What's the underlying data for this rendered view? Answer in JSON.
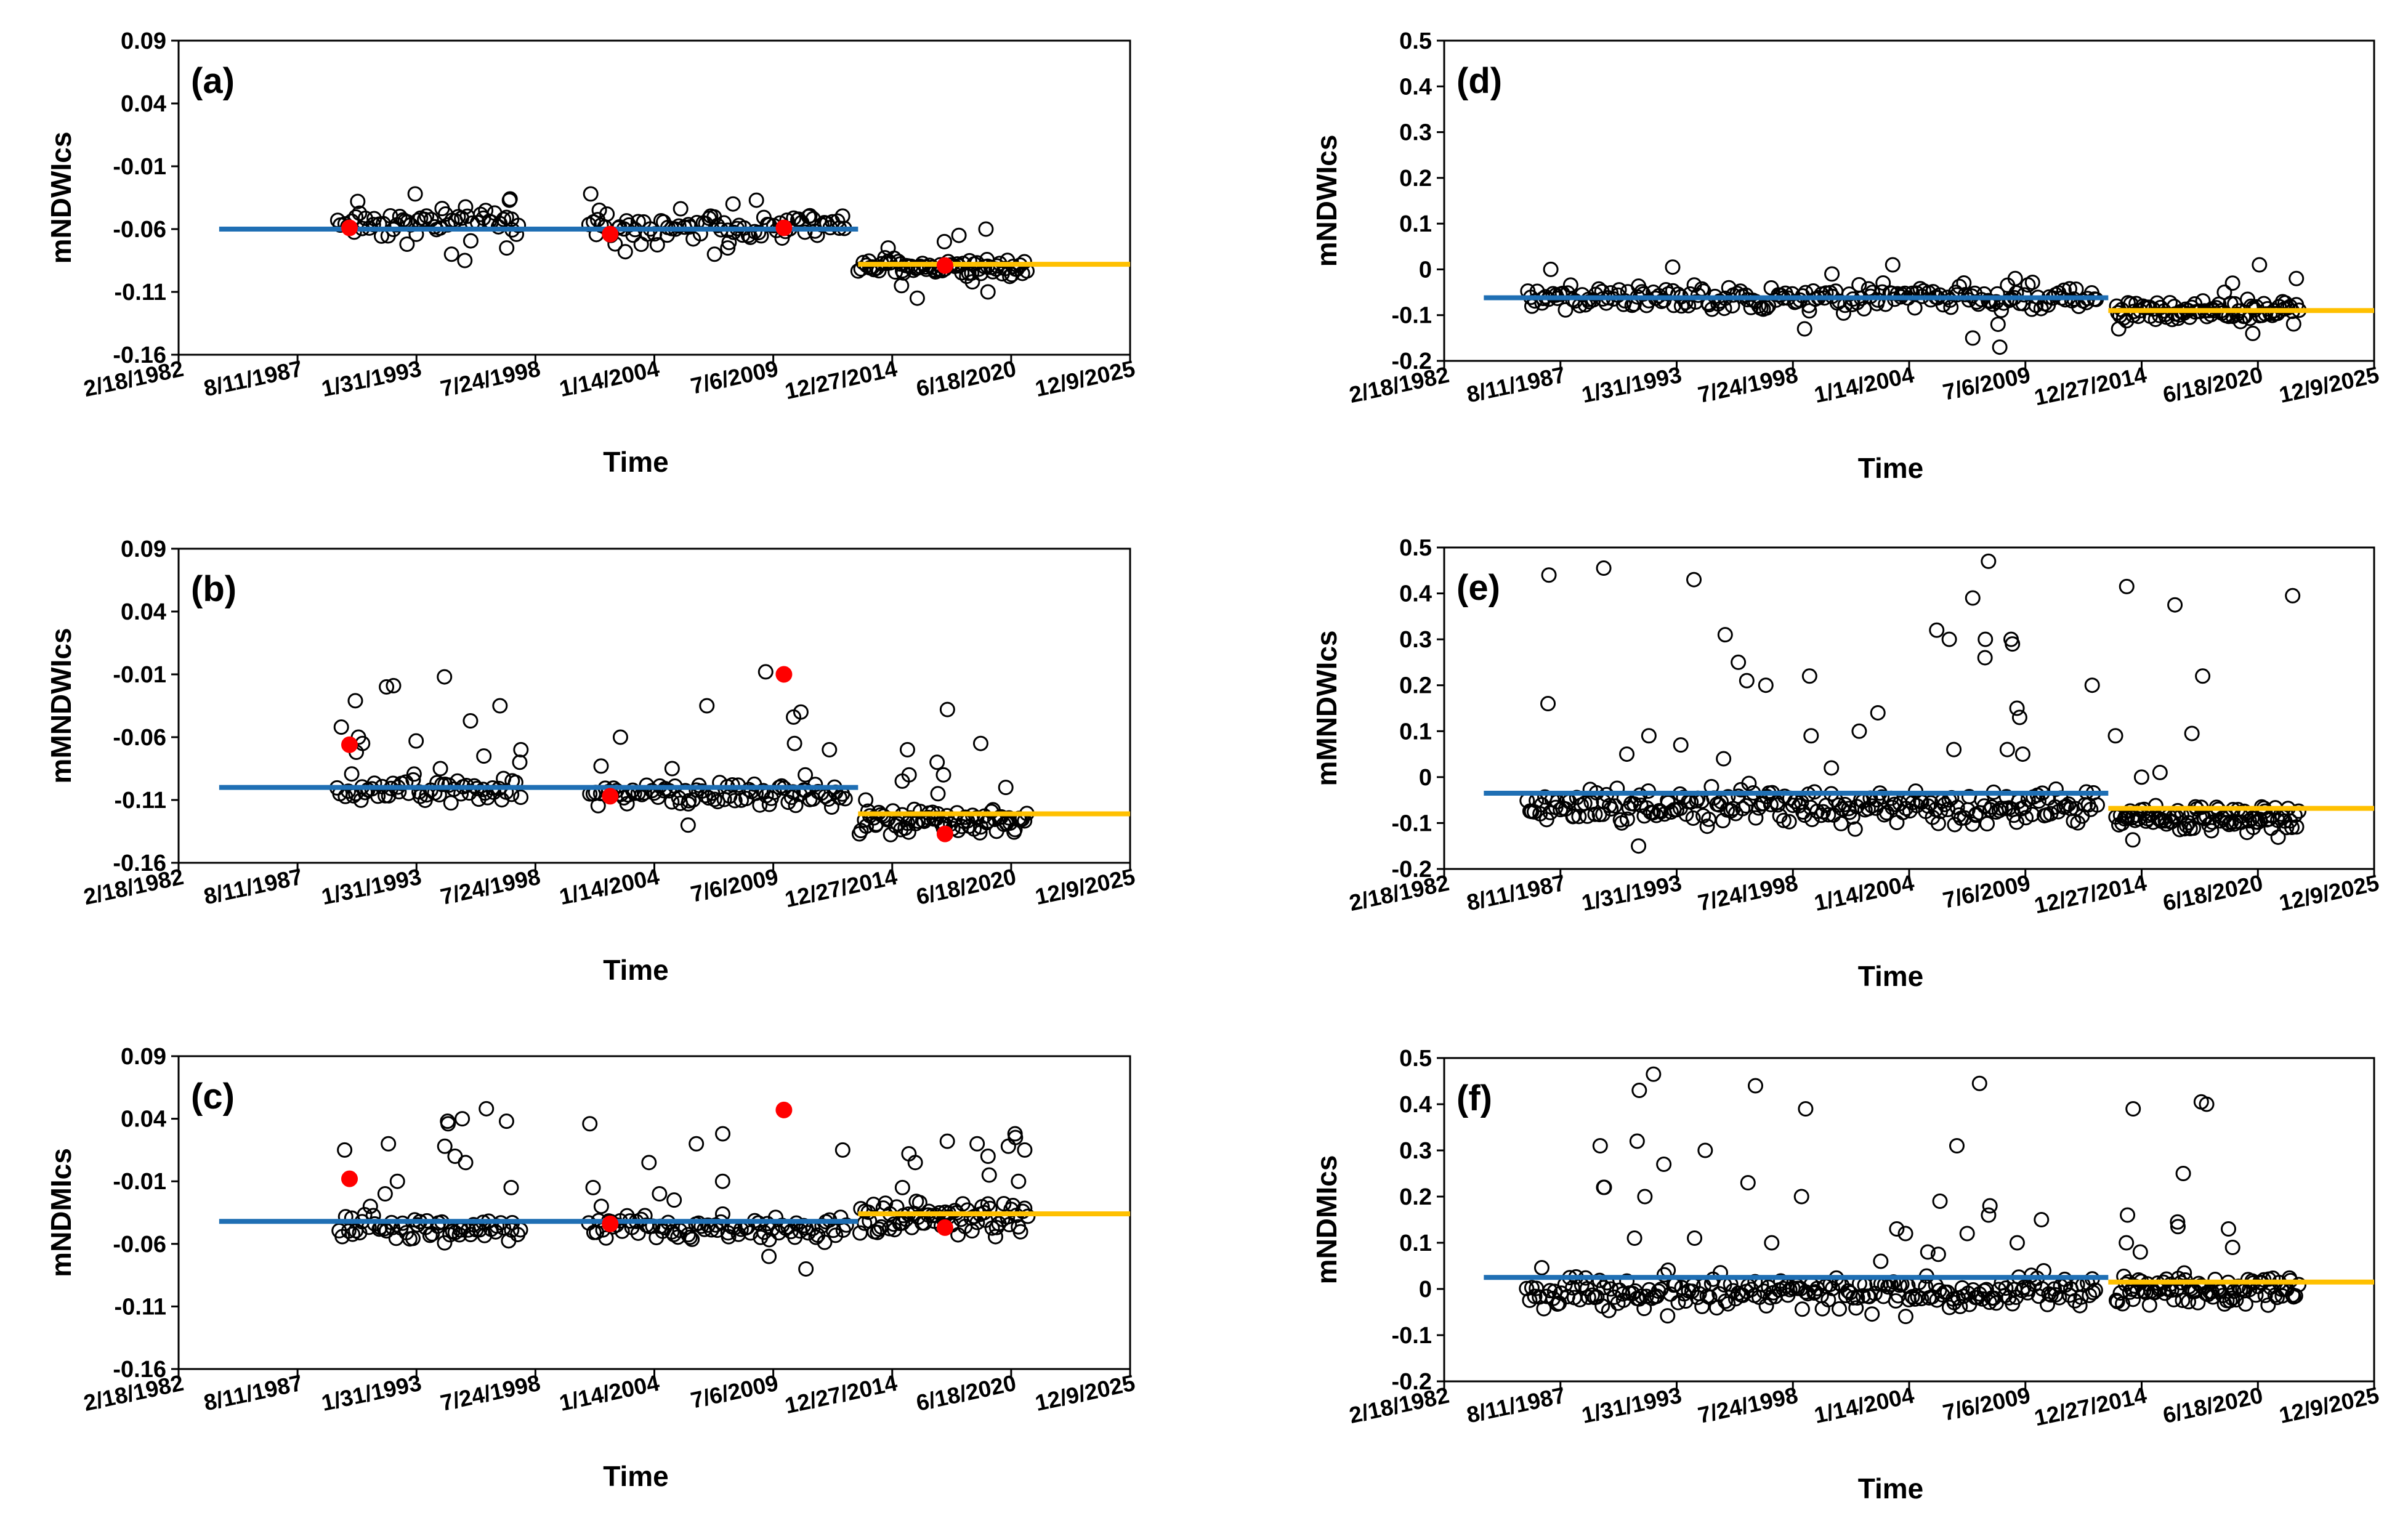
{
  "figure": {
    "x_axis_label": "Time"
  },
  "colors": {
    "baseline": "#1f6fb4",
    "recent": "#ffc000",
    "highlight": "#ff0000",
    "marker_edge": "#000000"
  },
  "chart_data": [
    {
      "id": "a",
      "panel_label": "(a)",
      "type": "scatter",
      "ylabel": "mNDWIcs",
      "ylim": [
        -0.16,
        0.09
      ],
      "yticks": [
        -0.16,
        -0.11,
        -0.06,
        -0.01,
        0.04,
        0.09
      ],
      "x_tick_labels": [
        "2/18/1982",
        "8/11/1987",
        "1/31/1993",
        "7/24/1998",
        "1/14/2004",
        "7/6/2009",
        "12/27/2014",
        "6/18/2020",
        "12/9/2025"
      ],
      "xlim": [
        "1982-02-18",
        "2025-12-09"
      ],
      "baseline": {
        "x_start": "1984-01-01",
        "x_end": "2013-06-01",
        "value": -0.06
      },
      "recent": {
        "x_start": "2013-06-01",
        "x_end": "2025-12-09",
        "value": -0.088
      },
      "highlights": [
        {
          "date": "1990-01-01",
          "value": -0.059
        },
        {
          "date": "2002-01-01",
          "value": -0.064
        },
        {
          "date": "2010-01-01",
          "value": -0.059
        },
        {
          "date": "2017-06-01",
          "value": -0.089
        }
      ],
      "clusters": [
        {
          "start": "1989-06-01",
          "end": "1997-12-01",
          "mean": -0.055,
          "spread": 0.009,
          "n": 60,
          "outliers": [
            -0.036,
            -0.037,
            -0.038,
            -0.08,
            -0.085,
            -0.075,
            -0.072,
            -0.032
          ]
        },
        {
          "start": "2001-01-01",
          "end": "2012-12-01",
          "mean": -0.058,
          "spread": 0.008,
          "n": 85,
          "outliers": [
            -0.04,
            -0.045,
            -0.08,
            -0.078,
            -0.075,
            -0.032,
            -0.037,
            -0.05
          ]
        },
        {
          "start": "2013-06-01",
          "end": "2021-04-01",
          "mean": -0.09,
          "spread": 0.006,
          "n": 75,
          "outliers": [
            -0.115,
            -0.105,
            -0.11,
            -0.06,
            -0.065,
            -0.07,
            -0.075,
            -0.102
          ]
        }
      ]
    },
    {
      "id": "b",
      "panel_label": "(b)",
      "type": "scatter",
      "ylabel": "mMNDWIcs",
      "ylim": [
        -0.16,
        0.09
      ],
      "yticks": [
        -0.16,
        -0.11,
        -0.06,
        -0.01,
        0.04,
        0.09
      ],
      "x_tick_labels": [
        "2/18/1982",
        "8/11/1987",
        "1/31/1993",
        "7/24/1998",
        "1/14/2004",
        "7/6/2009",
        "12/27/2014",
        "6/18/2020",
        "12/9/2025"
      ],
      "xlim": [
        "1982-02-18",
        "2025-12-09"
      ],
      "baseline": {
        "x_start": "1984-01-01",
        "x_end": "2013-06-01",
        "value": -0.1
      },
      "recent": {
        "x_start": "2013-06-01",
        "x_end": "2025-12-09",
        "value": -0.121
      },
      "highlights": [
        {
          "date": "1990-01-01",
          "value": -0.066
        },
        {
          "date": "2002-01-01",
          "value": -0.107
        },
        {
          "date": "2010-01-01",
          "value": -0.01
        },
        {
          "date": "2017-06-01",
          "value": -0.137
        }
      ],
      "clusters": [
        {
          "start": "1989-06-01",
          "end": "1997-12-01",
          "mean": -0.1,
          "spread": 0.009,
          "n": 60,
          "outliers": [
            -0.02,
            -0.019,
            -0.052,
            -0.047,
            -0.065,
            -0.07,
            -0.08,
            -0.085,
            -0.035,
            -0.012,
            -0.031,
            -0.063,
            -0.072,
            -0.06,
            -0.075
          ]
        },
        {
          "start": "2001-01-01",
          "end": "2012-12-01",
          "mean": -0.104,
          "spread": 0.008,
          "n": 85,
          "outliers": [
            -0.008,
            -0.044,
            -0.065,
            -0.083,
            -0.04,
            -0.035,
            -0.07,
            -0.13,
            -0.06,
            -0.085,
            -0.09
          ]
        },
        {
          "start": "2013-06-01",
          "end": "2021-04-01",
          "mean": -0.128,
          "spread": 0.007,
          "n": 75,
          "outliers": [
            -0.08,
            -0.09,
            -0.07,
            -0.1,
            -0.095,
            -0.038,
            -0.065,
            -0.105,
            -0.11,
            -0.09
          ]
        }
      ]
    },
    {
      "id": "c",
      "panel_label": "(c)",
      "type": "scatter",
      "ylabel": "mNDMIcs",
      "ylim": [
        -0.16,
        0.09
      ],
      "yticks": [
        -0.16,
        -0.11,
        -0.06,
        -0.01,
        0.04,
        0.09
      ],
      "x_tick_labels": [
        "2/18/1982",
        "8/11/1987",
        "1/31/1993",
        "7/24/1998",
        "1/14/2004",
        "7/6/2009",
        "12/27/2014",
        "6/18/2020",
        "12/9/2025"
      ],
      "xlim": [
        "1982-02-18",
        "2025-12-09"
      ],
      "baseline": {
        "x_start": "1984-01-01",
        "x_end": "2013-06-01",
        "value": -0.042
      },
      "recent": {
        "x_start": "2013-06-01",
        "x_end": "2025-12-09",
        "value": -0.036
      },
      "highlights": [
        {
          "date": "1990-01-01",
          "value": -0.008
        },
        {
          "date": "2002-01-01",
          "value": -0.044
        },
        {
          "date": "2010-01-01",
          "value": 0.047
        },
        {
          "date": "2017-06-01",
          "value": -0.047
        }
      ],
      "clusters": [
        {
          "start": "1989-06-01",
          "end": "1997-12-01",
          "mean": -0.047,
          "spread": 0.008,
          "n": 60,
          "outliers": [
            0.038,
            0.04,
            0.038,
            0.048,
            0.036,
            0.015,
            0.018,
            0.005,
            -0.01,
            -0.02,
            0.02,
            -0.03,
            -0.015,
            0.01
          ]
        },
        {
          "start": "2001-01-01",
          "end": "2012-12-01",
          "mean": -0.048,
          "spread": 0.008,
          "n": 85,
          "outliers": [
            0.036,
            0.028,
            0.015,
            0.02,
            -0.025,
            -0.02,
            -0.01,
            0.005,
            -0.08,
            -0.07,
            -0.03,
            -0.015
          ]
        },
        {
          "start": "2013-06-01",
          "end": "2021-04-01",
          "mean": -0.04,
          "spread": 0.01,
          "n": 75,
          "outliers": [
            0.028,
            0.025,
            0.01,
            0.02,
            0.015,
            0.005,
            -0.005,
            0.022,
            0.018,
            -0.01,
            -0.015,
            0.012
          ]
        }
      ]
    },
    {
      "id": "d",
      "panel_label": "(d)",
      "type": "scatter",
      "ylabel": "mNDWIcs",
      "ylim": [
        -0.2,
        0.5
      ],
      "yticks": [
        -0.2,
        -0.1,
        0,
        0.1,
        0.2,
        0.3,
        0.4,
        0.5
      ],
      "x_tick_labels": [
        "2/18/1982",
        "8/11/1987",
        "1/31/1993",
        "7/24/1998",
        "1/14/2004",
        "7/6/2009",
        "12/27/2014",
        "6/18/2020",
        "12/9/2025"
      ],
      "xlim": [
        "1982-02-18",
        "2025-12-09"
      ],
      "baseline": {
        "x_start": "1984-01-01",
        "x_end": "2013-06-01",
        "value": -0.062
      },
      "recent": {
        "x_start": "2013-06-01",
        "x_end": "2025-12-09",
        "value": -0.09
      },
      "highlights": [],
      "clusters": [
        {
          "start": "1986-01-01",
          "end": "2012-12-01",
          "mean": -0.062,
          "spread": 0.02,
          "n": 210,
          "outliers": [
            0.01,
            0.005,
            -0.01,
            0.0,
            -0.15,
            -0.13,
            -0.17,
            -0.12,
            -0.02
          ]
        },
        {
          "start": "2013-10-01",
          "end": "2022-06-01",
          "mean": -0.09,
          "spread": 0.018,
          "n": 90,
          "outliers": [
            0.01,
            -0.03,
            -0.05,
            -0.13,
            -0.14,
            -0.02
          ]
        }
      ]
    },
    {
      "id": "e",
      "panel_label": "(e)",
      "type": "scatter",
      "ylabel": "mMNDWIcs",
      "ylim": [
        -0.2,
        0.5
      ],
      "yticks": [
        -0.2,
        -0.1,
        0,
        0.1,
        0.2,
        0.3,
        0.4,
        0.5
      ],
      "x_tick_labels": [
        "2/18/1982",
        "8/11/1987",
        "1/31/1993",
        "7/24/1998",
        "1/14/2004",
        "7/6/2009",
        "12/27/2014",
        "6/18/2020",
        "12/9/2025"
      ],
      "xlim": [
        "1982-02-18",
        "2025-12-09"
      ],
      "baseline": {
        "x_start": "1984-01-01",
        "x_end": "2013-06-01",
        "value": -0.035
      },
      "recent": {
        "x_start": "2013-06-01",
        "x_end": "2025-12-09",
        "value": -0.068
      },
      "highlights": [],
      "clusters": [
        {
          "start": "1986-01-01",
          "end": "2012-12-01",
          "mean": -0.065,
          "spread": 0.03,
          "n": 230,
          "outliers": [
            0.44,
            0.455,
            0.47,
            0.43,
            0.39,
            0.3,
            0.29,
            0.26,
            0.32,
            0.25,
            0.2,
            0.2,
            0.15,
            0.14,
            0.1,
            0.09,
            0.07,
            0.05,
            0.3,
            0.3,
            0.22,
            0.21,
            0.16,
            0.13,
            0.09,
            0.06,
            0.04,
            0.02,
            0.05,
            0.31,
            0.06,
            -0.15
          ]
        },
        {
          "start": "2013-10-01",
          "end": "2022-06-01",
          "mean": -0.09,
          "spread": 0.025,
          "n": 95,
          "outliers": [
            0.415,
            0.395,
            0.22,
            0.095,
            0.09,
            0.375,
            0.0,
            0.01
          ]
        }
      ]
    },
    {
      "id": "f",
      "panel_label": "(f)",
      "type": "scatter",
      "ylabel": "mNDMIcs",
      "ylim": [
        -0.2,
        0.5
      ],
      "yticks": [
        -0.2,
        -0.1,
        0,
        0.1,
        0.2,
        0.3,
        0.4,
        0.5
      ],
      "x_tick_labels": [
        "2/18/1982",
        "8/11/1987",
        "1/31/1993",
        "7/24/1998",
        "1/14/2004",
        "7/6/2009",
        "12/27/2014",
        "6/18/2020",
        "12/9/2025"
      ],
      "xlim": [
        "1982-02-18",
        "2025-12-09"
      ],
      "baseline": {
        "x_start": "1984-01-01",
        "x_end": "2013-06-01",
        "value": 0.025
      },
      "recent": {
        "x_start": "2013-06-01",
        "x_end": "2025-12-09",
        "value": 0.015
      },
      "highlights": [],
      "clusters": [
        {
          "start": "1986-01-01",
          "end": "2012-12-01",
          "mean": -0.005,
          "spread": 0.03,
          "n": 230,
          "outliers": [
            0.44,
            0.445,
            0.465,
            0.43,
            0.39,
            0.31,
            0.3,
            0.27,
            0.32,
            0.2,
            0.22,
            0.18,
            0.15,
            0.12,
            0.1,
            0.1,
            0.12,
            0.13,
            0.22,
            0.2,
            0.16,
            0.11,
            0.31,
            0.23,
            0.19,
            0.11,
            0.075,
            0.08,
            0.06
          ]
        },
        {
          "start": "2013-10-01",
          "end": "2022-06-01",
          "mean": 0.0,
          "spread": 0.025,
          "n": 95,
          "outliers": [
            0.405,
            0.4,
            0.25,
            0.16,
            0.145,
            0.135,
            0.39,
            0.13,
            0.1,
            0.09,
            0.08
          ]
        }
      ]
    }
  ]
}
